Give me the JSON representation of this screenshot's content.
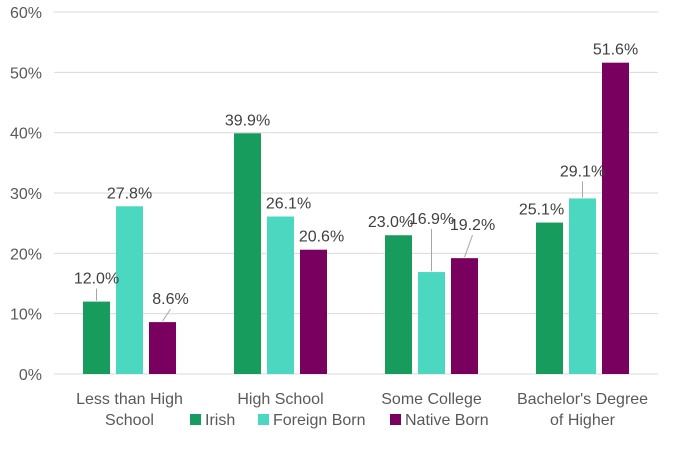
{
  "chart_data": {
    "type": "bar",
    "categories": [
      [
        "Less than High",
        "School"
      ],
      [
        "High School"
      ],
      [
        "Some College"
      ],
      [
        "Bachelor's  Degree",
        "of Higher"
      ]
    ],
    "series": [
      {
        "name": "Irish",
        "values": [
          12.0,
          39.9,
          23.0,
          25.1
        ],
        "labels": [
          "12.0%",
          "39.9%",
          "23.0%",
          "25.1%"
        ]
      },
      {
        "name": "Foreign Born",
        "values": [
          27.8,
          26.1,
          16.9,
          29.1
        ],
        "labels": [
          "27.8%",
          "26.1%",
          "16.9%",
          "29.1%"
        ]
      },
      {
        "name": "Native Born",
        "values": [
          8.6,
          20.6,
          19.2,
          51.6
        ],
        "labels": [
          "8.6%",
          "20.6%",
          "19.2%",
          "51.6%"
        ]
      }
    ],
    "y_ticks": [
      "0%",
      "10%",
      "20%",
      "30%",
      "40%",
      "50%",
      "60%"
    ],
    "ylim": [
      0,
      60
    ],
    "grid": true,
    "legend_position": "bottom",
    "colors": [
      "#189c5e",
      "#4cd8c0",
      "#7a0060"
    ]
  }
}
